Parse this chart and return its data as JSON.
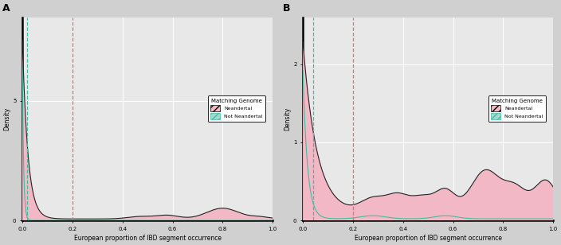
{
  "panel_A": {
    "label": "A",
    "ylim": [
      0,
      8.5
    ],
    "yticks": [
      0,
      5
    ],
    "ytick_labels": [
      "0",
      "5"
    ],
    "vline_cyan_x": 0.02,
    "vline_red_x": 0.2
  },
  "panel_B": {
    "label": "B",
    "ylim": [
      0,
      2.6
    ],
    "yticks": [
      0,
      1,
      2
    ],
    "ytick_labels": [
      "0",
      "1",
      "2"
    ],
    "vline_cyan_x": 0.04,
    "vline_red_x": 0.2
  },
  "xlabel": "European proportion of IBD segment occurrence",
  "ylabel": "Density",
  "legend_title": "Matching Genome",
  "legend_neandertal": "Neandertal",
  "legend_not_neandertal": "Not Neandertal",
  "xticks": [
    0.0,
    0.2,
    0.4,
    0.6,
    0.8,
    1.0
  ],
  "xtick_labels": [
    "0.0",
    "0.2",
    "0.4",
    "0.6",
    "0.8",
    "1.0"
  ],
  "xlim": [
    0.0,
    1.0
  ],
  "colors": {
    "neandertal_fill": "#f2b8c6",
    "not_neandertal_fill": "#a8d5cf",
    "not_neandertal_edge": "#3dbfa0",
    "vline_cyan": "#3dbfa0",
    "vline_red": "#e07070",
    "background": "#e8e8e8",
    "grid": "#ffffff",
    "fig_bg": "#d0d0d0",
    "outline": "#222222"
  }
}
